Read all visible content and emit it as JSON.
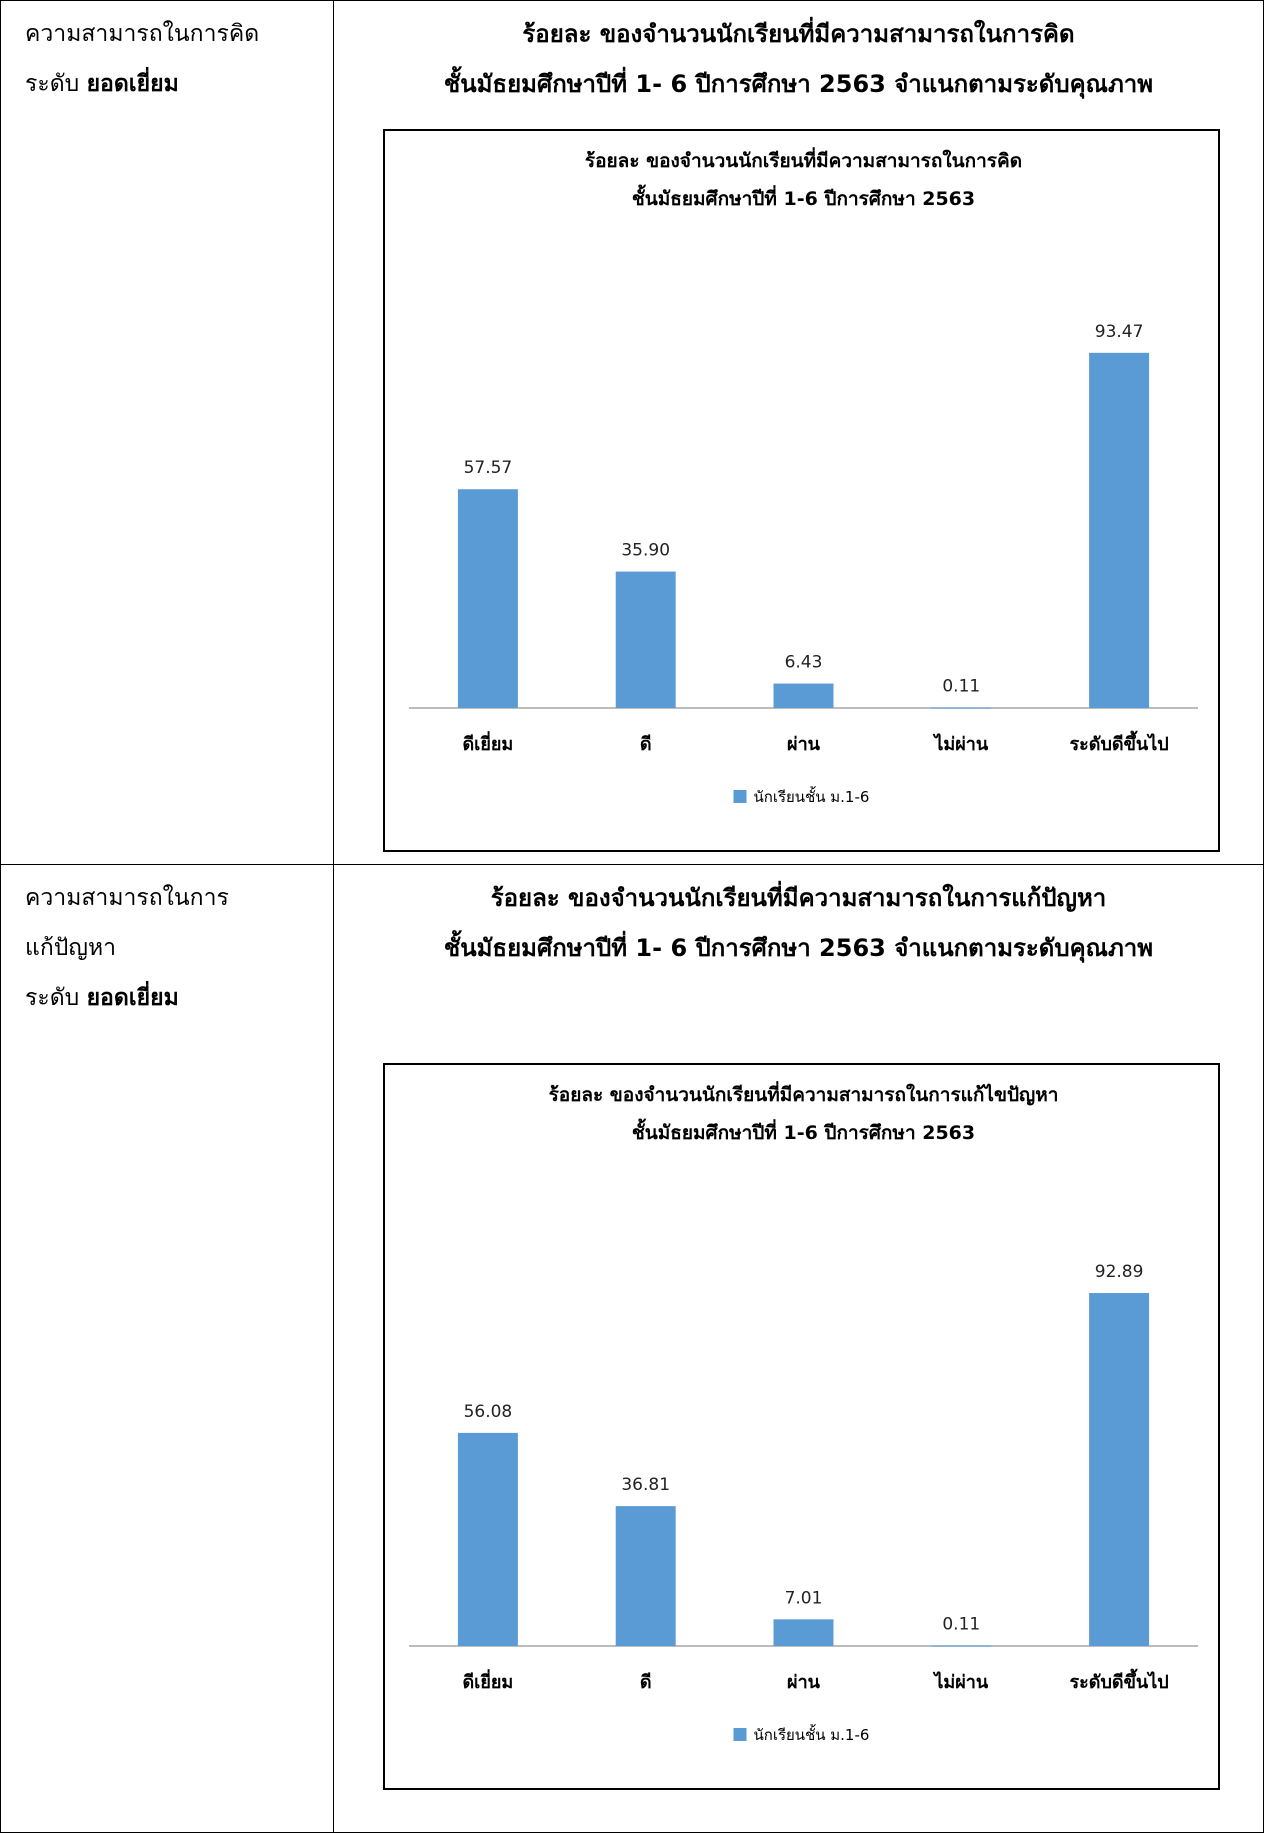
{
  "colors": {
    "bar": "#5b9bd5",
    "axis": "#a6a6a6",
    "border": "#000000"
  },
  "sections": [
    {
      "left_lines": [
        {
          "normal": "ความสามารถในการคิด",
          "bold": ""
        },
        {
          "normal": "ระดับ ",
          "bold": "ยอดเยี่ยม"
        }
      ],
      "heading_lines": [
        "ร้อยละ ของจำนวนนักเรียนที่มีความสามารถในการคิด",
        "ชั้นมัธยมศึกษาปีที่ 1- 6 ปีการศึกษา 2563 จำแนกตามระดับคุณภาพ"
      ],
      "chart_data": {
        "type": "bar",
        "title": [
          "ร้อยละ ของจำนวนนักเรียนที่มีความสามารถในการคิด",
          "ชั้นมัธยมศึกษาปีที่ 1-6 ปีการศึกษา 2563"
        ],
        "categories": [
          "ดีเยี่ยม",
          "ดี",
          "ผ่าน",
          "ไม่ผ่าน",
          "ระดับดีขึ้นไป"
        ],
        "series": [
          {
            "name": "นักเรียนชั้น ม.1-6",
            "values": [
              57.57,
              35.9,
              6.43,
              0.11,
              93.47
            ],
            "labels": [
              "57.57",
              "35.90",
              "6.43",
              "0.11",
              "93.47"
            ]
          }
        ],
        "legend": "bottom",
        "grid": false,
        "ylim": [
          0,
          100
        ]
      }
    },
    {
      "left_lines": [
        {
          "normal": "ความสามารถในการ",
          "bold": ""
        },
        {
          "normal": "แก้ปัญหา",
          "bold": ""
        },
        {
          "normal": "ระดับ ",
          "bold": "ยอดเยี่ยม"
        }
      ],
      "heading_lines": [
        "ร้อยละ ของจำนวนนักเรียนที่มีความสามารถในการแก้ปัญหา",
        "ชั้นมัธยมศึกษาปีที่ 1- 6 ปีการศึกษา 2563 จำแนกตามระดับคุณภาพ"
      ],
      "chart_data": {
        "type": "bar",
        "title": [
          "ร้อยละ ของจำนวนนักเรียนที่มีความสามารถในการแก้ไขปัญหา",
          "ชั้นมัธยมศึกษาปีที่ 1-6  ปีการศึกษา 2563"
        ],
        "categories": [
          "ดีเยี่ยม",
          "ดี",
          "ผ่าน",
          "ไม่ผ่าน",
          "ระดับดีขึ้นไป"
        ],
        "series": [
          {
            "name": "นักเรียนชั้น ม.1-6",
            "values": [
              56.08,
              36.81,
              7.01,
              0.11,
              92.89
            ],
            "labels": [
              "56.08",
              "36.81",
              "7.01",
              "0.11",
              "92.89"
            ]
          }
        ],
        "legend": "bottom",
        "grid": false,
        "ylim": [
          0,
          100
        ]
      }
    }
  ]
}
